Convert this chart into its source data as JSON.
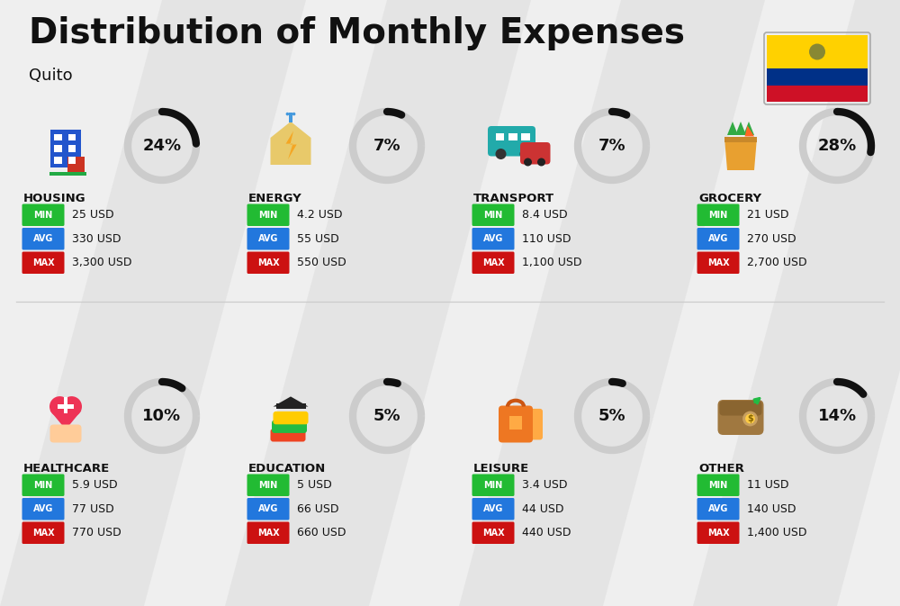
{
  "title": "Distribution of Monthly Expenses",
  "subtitle": "Quito",
  "background_color": "#efefef",
  "categories": [
    {
      "name": "HOUSING",
      "percent": 24,
      "min": "25 USD",
      "avg": "330 USD",
      "max": "3,300 USD",
      "col": 0,
      "row": 0
    },
    {
      "name": "ENERGY",
      "percent": 7,
      "min": "4.2 USD",
      "avg": "55 USD",
      "max": "550 USD",
      "col": 1,
      "row": 0
    },
    {
      "name": "TRANSPORT",
      "percent": 7,
      "min": "8.4 USD",
      "avg": "110 USD",
      "max": "1,100 USD",
      "col": 2,
      "row": 0
    },
    {
      "name": "GROCERY",
      "percent": 28,
      "min": "21 USD",
      "avg": "270 USD",
      "max": "2,700 USD",
      "col": 3,
      "row": 0
    },
    {
      "name": "HEALTHCARE",
      "percent": 10,
      "min": "5.9 USD",
      "avg": "77 USD",
      "max": "770 USD",
      "col": 0,
      "row": 1
    },
    {
      "name": "EDUCATION",
      "percent": 5,
      "min": "5 USD",
      "avg": "66 USD",
      "max": "660 USD",
      "col": 1,
      "row": 1
    },
    {
      "name": "LEISURE",
      "percent": 5,
      "min": "3.4 USD",
      "avg": "44 USD",
      "max": "440 USD",
      "col": 2,
      "row": 1
    },
    {
      "name": "OTHER",
      "percent": 14,
      "min": "11 USD",
      "avg": "140 USD",
      "max": "1,400 USD",
      "col": 3,
      "row": 1
    }
  ],
  "min_color": "#22bb33",
  "avg_color": "#2277dd",
  "max_color": "#cc1111",
  "label_text_color": "#ffffff",
  "text_color": "#111111",
  "ring_active_color": "#111111",
  "ring_inactive_color": "#cccccc",
  "divider_color": "#cccccc",
  "flag_yellow": "#FFD100",
  "flag_blue": "#003087",
  "flag_red": "#CE1126",
  "stripe_color": "#e3e3e3",
  "title_fontsize": 28,
  "subtitle_fontsize": 13,
  "category_name_fontsize": 9.5,
  "pct_fontsize": 13,
  "badge_label_fontsize": 7,
  "value_fontsize": 9
}
